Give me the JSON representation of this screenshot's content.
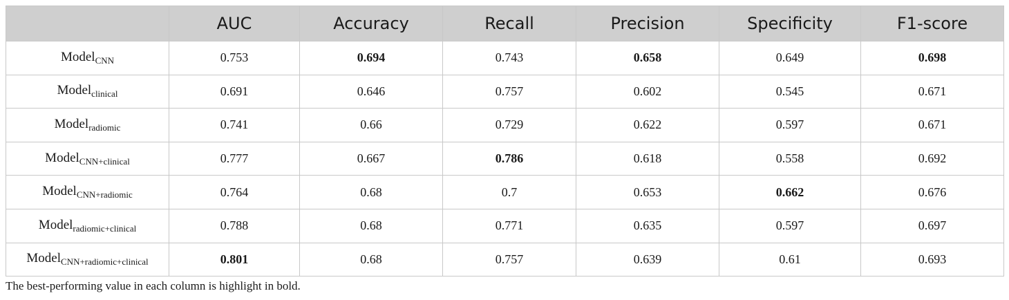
{
  "table": {
    "headers": [
      "",
      "AUC",
      "Accuracy",
      "Recall",
      "Precision",
      "Specificity",
      "F1-score"
    ],
    "rows": [
      {
        "model_base": "Model",
        "model_sub": "CNN",
        "values": [
          "0.753",
          "0.694",
          "0.743",
          "0.658",
          "0.649",
          "0.698"
        ],
        "bold": [
          false,
          true,
          false,
          true,
          false,
          true
        ]
      },
      {
        "model_base": "Model",
        "model_sub": "clinical",
        "values": [
          "0.691",
          "0.646",
          "0.757",
          "0.602",
          "0.545",
          "0.671"
        ],
        "bold": [
          false,
          false,
          false,
          false,
          false,
          false
        ]
      },
      {
        "model_base": "Model",
        "model_sub": "radiomic",
        "values": [
          "0.741",
          "0.66",
          "0.729",
          "0.622",
          "0.597",
          "0.671"
        ],
        "bold": [
          false,
          false,
          false,
          false,
          false,
          false
        ]
      },
      {
        "model_base": "Model",
        "model_sub": "CNN+clinical",
        "values": [
          "0.777",
          "0.667",
          "0.786",
          "0.618",
          "0.558",
          "0.692"
        ],
        "bold": [
          false,
          false,
          true,
          false,
          false,
          false
        ]
      },
      {
        "model_base": "Model",
        "model_sub": "CNN+radiomic",
        "values": [
          "0.764",
          "0.68",
          "0.7",
          "0.653",
          "0.662",
          "0.676"
        ],
        "bold": [
          false,
          false,
          false,
          false,
          true,
          false
        ]
      },
      {
        "model_base": "Model",
        "model_sub": "radiomic+clinical",
        "values": [
          "0.788",
          "0.68",
          "0.771",
          "0.635",
          "0.597",
          "0.697"
        ],
        "bold": [
          false,
          false,
          false,
          false,
          false,
          false
        ]
      },
      {
        "model_base": "Model",
        "model_sub": "CNN+radiomic+clinical",
        "values": [
          "0.801",
          "0.68",
          "0.757",
          "0.639",
          "0.61",
          "0.693"
        ],
        "bold": [
          true,
          false,
          false,
          false,
          false,
          false
        ]
      }
    ]
  },
  "footnote": "The best-performing value in each column is highlight in bold."
}
